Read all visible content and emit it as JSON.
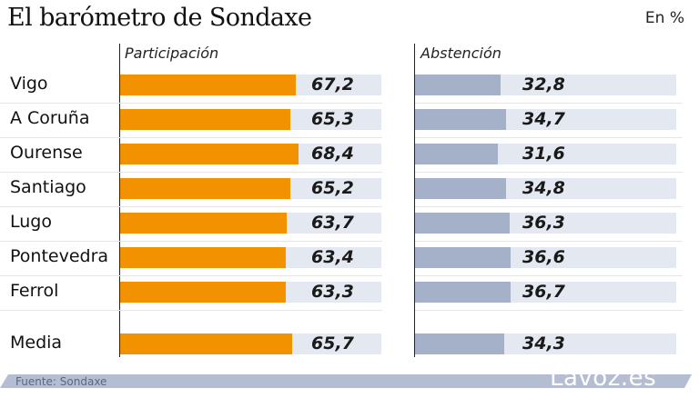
{
  "header": {
    "title": "El barómetro de Sondaxe",
    "unit": "En %"
  },
  "footer": {
    "source": "Fuente: Sondaxe",
    "brand": "Lavoz.es"
  },
  "colors": {
    "participation": "#f39200",
    "abstention": "#a5b1c9",
    "track": "#e4e8f0",
    "footer_band": "#b4bdd1"
  },
  "chart_data": {
    "type": "bar",
    "orientation": "horizontal",
    "title": "El barómetro de Sondaxe",
    "unit_label": "En %",
    "categories": [
      "Vigo",
      "A Coruña",
      "Ourense",
      "Santiago",
      "Lugo",
      "Pontevedra",
      "Ferrol",
      "Media"
    ],
    "series": [
      {
        "name": "Participación",
        "values": [
          67.2,
          65.3,
          68.4,
          65.2,
          63.7,
          63.4,
          63.3,
          65.7
        ],
        "labels": [
          "67,2",
          "65,3",
          "68,4",
          "65,2",
          "63,7",
          "63,4",
          "63,3",
          "65,7"
        ]
      },
      {
        "name": "Abstención",
        "values": [
          32.8,
          34.7,
          31.6,
          34.8,
          36.3,
          36.6,
          36.7,
          34.3
        ],
        "labels": [
          "32,8",
          "34,7",
          "31,6",
          "34,8",
          "36,3",
          "36,6",
          "36,7",
          "34,3"
        ]
      }
    ],
    "xlim": [
      0,
      100
    ],
    "grid": false,
    "legend": "none",
    "source": "Fuente: Sondaxe"
  }
}
